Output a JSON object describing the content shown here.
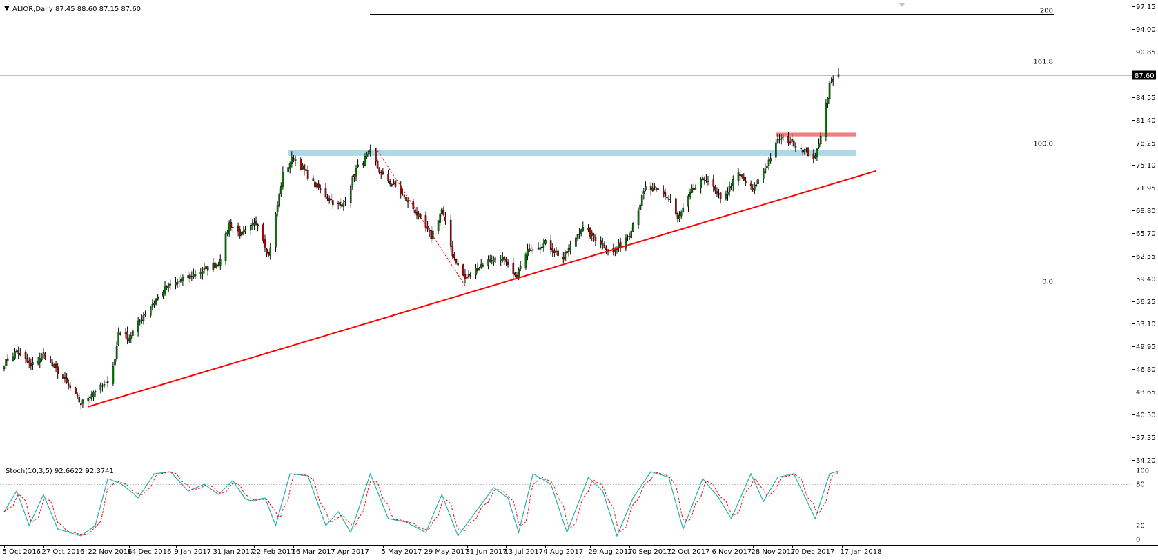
{
  "header": {
    "symbol": "ALIOR,Daily",
    "ohlc": "87.45 88.60 87.15 87.60"
  },
  "indicator": {
    "label": "Stoch(10,3,5) 92.6622 92.3741",
    "levels": [
      "100",
      "80",
      "20",
      "0"
    ]
  },
  "price_axis": {
    "ticks": [
      "97.15",
      "94.00",
      "90.85",
      "87.70",
      "84.55",
      "81.40",
      "78.25",
      "75.10",
      "71.95",
      "68.80",
      "65.70",
      "62.55",
      "59.40",
      "56.25",
      "53.10",
      "49.95",
      "46.80",
      "43.65",
      "40.50",
      "37.35",
      "34.20"
    ],
    "current_price": "87.60"
  },
  "fib": {
    "labels": [
      "200",
      "161.8",
      "100.0",
      "0.0"
    ]
  },
  "time_axis": {
    "labels": [
      "5 Oct 2016",
      "27 Oct 2016",
      "22 Nov 2016",
      "14 Dec 2016",
      "9 Jan 2017",
      "31 Jan 2017",
      "22 Feb 2017",
      "16 Mar 2017",
      "7 Apr 2017",
      "5 May 2017",
      "29 May 2017",
      "21 Jun 2017",
      "13 Jul 2017",
      "4 Aug 2017",
      "29 Aug 2017",
      "20 Sep 2017",
      "12 Oct 2017",
      "6 Nov 2017",
      "28 Nov 2017",
      "20 Dec 2017",
      "17 Jan 2018"
    ]
  },
  "colors": {
    "bull": "#008000",
    "bear": "#c00000",
    "wick": "#000000",
    "trend": "#ff0000",
    "resistance": "#add8e6",
    "support_red": "#f08080",
    "stoch_main": "#20b2aa",
    "stoch_signal": "#ff0000"
  },
  "chart_data": {
    "type": "candlestick",
    "symbol": "ALIOR",
    "timeframe": "Daily",
    "ylim": [
      34.2,
      97.15
    ],
    "last": {
      "open": 87.45,
      "high": 88.6,
      "low": 87.15,
      "close": 87.6
    },
    "anchors": [
      {
        "date": "2016-10-05",
        "price": 47.6
      },
      {
        "date": "2016-10-12",
        "price": 49.3
      },
      {
        "date": "2016-10-20",
        "price": 47.2
      },
      {
        "date": "2016-10-27",
        "price": 48.9
      },
      {
        "date": "2016-11-07",
        "price": 45.5
      },
      {
        "date": "2016-11-17",
        "price": 42.0
      },
      {
        "date": "2016-11-25",
        "price": 43.9
      },
      {
        "date": "2016-12-01",
        "price": 44.6
      },
      {
        "date": "2016-12-06",
        "price": 48.1
      },
      {
        "date": "2016-12-08",
        "price": 52.0
      },
      {
        "date": "2016-12-14",
        "price": 51.2
      },
      {
        "date": "2016-12-22",
        "price": 54.3
      },
      {
        "date": "2017-01-03",
        "price": 58.0
      },
      {
        "date": "2017-01-13",
        "price": 59.2
      },
      {
        "date": "2017-01-24",
        "price": 60.5
      },
      {
        "date": "2017-02-02",
        "price": 61.5
      },
      {
        "date": "2017-02-08",
        "price": 67.0
      },
      {
        "date": "2017-02-15",
        "price": 65.4
      },
      {
        "date": "2017-02-24",
        "price": 67.3
      },
      {
        "date": "2017-03-02",
        "price": 62.5
      },
      {
        "date": "2017-03-10",
        "price": 73.8
      },
      {
        "date": "2017-03-16",
        "price": 76.3
      },
      {
        "date": "2017-03-27",
        "price": 72.6
      },
      {
        "date": "2017-04-07",
        "price": 70.0
      },
      {
        "date": "2017-04-12",
        "price": 69.2
      },
      {
        "date": "2017-04-20",
        "price": 74.5
      },
      {
        "date": "2017-04-28",
        "price": 76.9
      },
      {
        "date": "2017-05-04",
        "price": 73.8
      },
      {
        "date": "2017-05-12",
        "price": 72.1
      },
      {
        "date": "2017-05-22",
        "price": 69.1
      },
      {
        "date": "2017-06-01",
        "price": 65.2
      },
      {
        "date": "2017-06-07",
        "price": 69.0
      },
      {
        "date": "2017-06-13",
        "price": 62.8
      },
      {
        "date": "2017-06-20",
        "price": 59.3
      },
      {
        "date": "2017-06-30",
        "price": 61.5
      },
      {
        "date": "2017-07-10",
        "price": 62.5
      },
      {
        "date": "2017-07-18",
        "price": 59.4
      },
      {
        "date": "2017-07-26",
        "price": 63.6
      },
      {
        "date": "2017-08-04",
        "price": 64.3
      },
      {
        "date": "2017-08-14",
        "price": 62.1
      },
      {
        "date": "2017-08-24",
        "price": 66.4
      },
      {
        "date": "2017-09-05",
        "price": 64.2
      },
      {
        "date": "2017-09-11",
        "price": 62.9
      },
      {
        "date": "2017-09-20",
        "price": 65.7
      },
      {
        "date": "2017-09-29",
        "price": 71.9
      },
      {
        "date": "2017-10-06",
        "price": 71.5
      },
      {
        "date": "2017-10-13",
        "price": 70.3
      },
      {
        "date": "2017-10-17",
        "price": 67.5
      },
      {
        "date": "2017-10-25",
        "price": 71.5
      },
      {
        "date": "2017-11-02",
        "price": 73.4
      },
      {
        "date": "2017-11-10",
        "price": 70.2
      },
      {
        "date": "2017-11-20",
        "price": 73.8
      },
      {
        "date": "2017-11-28",
        "price": 71.6
      },
      {
        "date": "2017-12-05",
        "price": 74.7
      },
      {
        "date": "2017-12-13",
        "price": 78.9
      },
      {
        "date": "2017-12-21",
        "price": 78.2
      },
      {
        "date": "2018-01-02",
        "price": 76.0
      },
      {
        "date": "2018-01-05",
        "price": 79.5
      },
      {
        "date": "2018-01-10",
        "price": 86.2
      },
      {
        "date": "2018-01-15",
        "price": 87.6
      }
    ],
    "horizontal_lines": [
      {
        "label": "200",
        "price": 96.0
      },
      {
        "label": "161.8",
        "price": 88.95
      },
      {
        "label": "100.0",
        "price": 77.5
      },
      {
        "label": "0.0",
        "price": 58.4
      }
    ],
    "zones": [
      {
        "kind": "resistance",
        "price_low": 76.4,
        "price_high": 77.2,
        "from": "2017-03-13",
        "to": "2018-01-25"
      },
      {
        "kind": "resistance",
        "price_low": 79.1,
        "price_high": 79.6,
        "from": "2017-12-11",
        "to": "2018-01-25"
      }
    ],
    "trendlines": [
      {
        "from": {
          "date": "2016-11-21",
          "price": 41.6
        },
        "to": {
          "date": "2018-02-05",
          "price": 74.3
        }
      },
      {
        "from": {
          "date": "2017-05-01",
          "price": 77.5
        },
        "to": {
          "date": "2017-06-20",
          "price": 58.4
        },
        "style": "dashed"
      }
    ],
    "stochastic": {
      "params": "(10,3,5)",
      "main": 92.6622,
      "signal": 92.3741,
      "levels": [
        20,
        80
      ],
      "ylim": [
        0,
        100
      ],
      "anchors": [
        {
          "date": "2016-10-05",
          "k": 40
        },
        {
          "date": "2016-10-12",
          "k": 70
        },
        {
          "date": "2016-10-19",
          "k": 20
        },
        {
          "date": "2016-10-27",
          "k": 65
        },
        {
          "date": "2016-11-04",
          "k": 15
        },
        {
          "date": "2016-11-17",
          "k": 5
        },
        {
          "date": "2016-11-25",
          "k": 20
        },
        {
          "date": "2016-12-02",
          "k": 88
        },
        {
          "date": "2016-12-10",
          "k": 80
        },
        {
          "date": "2016-12-19",
          "k": 60
        },
        {
          "date": "2016-12-28",
          "k": 95
        },
        {
          "date": "2017-01-06",
          "k": 98
        },
        {
          "date": "2017-01-16",
          "k": 70
        },
        {
          "date": "2017-01-25",
          "k": 80
        },
        {
          "date": "2017-02-02",
          "k": 65
        },
        {
          "date": "2017-02-10",
          "k": 85
        },
        {
          "date": "2017-02-18",
          "k": 55
        },
        {
          "date": "2017-02-28",
          "k": 60
        },
        {
          "date": "2017-03-06",
          "k": 20
        },
        {
          "date": "2017-03-14",
          "k": 95
        },
        {
          "date": "2017-03-24",
          "k": 92
        },
        {
          "date": "2017-04-03",
          "k": 20
        },
        {
          "date": "2017-04-10",
          "k": 40
        },
        {
          "date": "2017-04-17",
          "k": 10
        },
        {
          "date": "2017-04-28",
          "k": 95
        },
        {
          "date": "2017-05-08",
          "k": 30
        },
        {
          "date": "2017-05-18",
          "k": 25
        },
        {
          "date": "2017-05-29",
          "k": 10
        },
        {
          "date": "2017-06-07",
          "k": 65
        },
        {
          "date": "2017-06-16",
          "k": 5
        },
        {
          "date": "2017-06-26",
          "k": 40
        },
        {
          "date": "2017-07-06",
          "k": 75
        },
        {
          "date": "2017-07-14",
          "k": 60
        },
        {
          "date": "2017-07-20",
          "k": 10
        },
        {
          "date": "2017-07-28",
          "k": 95
        },
        {
          "date": "2017-08-07",
          "k": 80
        },
        {
          "date": "2017-08-16",
          "k": 10
        },
        {
          "date": "2017-08-28",
          "k": 90
        },
        {
          "date": "2017-09-05",
          "k": 70
        },
        {
          "date": "2017-09-13",
          "k": 5
        },
        {
          "date": "2017-09-22",
          "k": 60
        },
        {
          "date": "2017-10-02",
          "k": 98
        },
        {
          "date": "2017-10-12",
          "k": 90
        },
        {
          "date": "2017-10-20",
          "k": 15
        },
        {
          "date": "2017-10-31",
          "k": 88
        },
        {
          "date": "2017-11-09",
          "k": 60
        },
        {
          "date": "2017-11-16",
          "k": 30
        },
        {
          "date": "2017-11-27",
          "k": 95
        },
        {
          "date": "2017-12-04",
          "k": 55
        },
        {
          "date": "2017-12-12",
          "k": 90
        },
        {
          "date": "2017-12-21",
          "k": 95
        },
        {
          "date": "2018-01-02",
          "k": 30
        },
        {
          "date": "2018-01-10",
          "k": 95
        },
        {
          "date": "2018-01-15",
          "k": 99
        }
      ]
    }
  }
}
